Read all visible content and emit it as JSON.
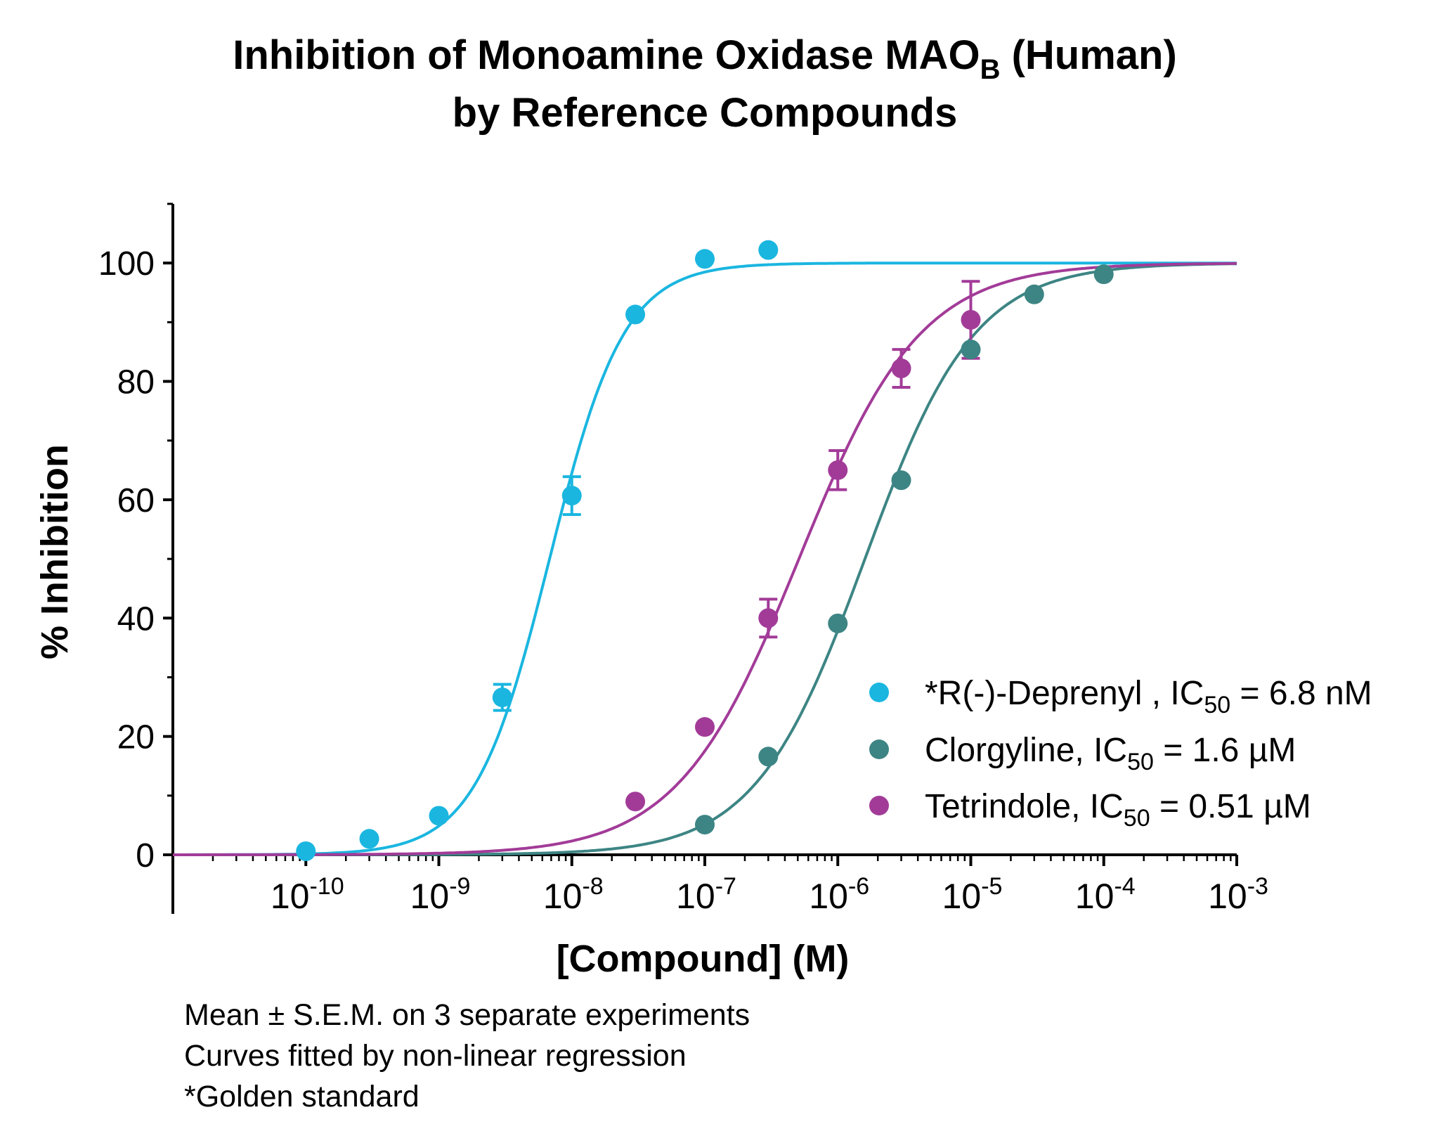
{
  "chart_data": {
    "type": "scatter",
    "title_line1_prefix": "Inhibition of  Monoamine Oxidase MAO",
    "title_line1_sub": "B",
    "title_line1_suffix": " (Human)",
    "title_line2": "by Reference Compounds",
    "xlabel": "[Compound] (M)",
    "ylabel": "% Inhibition",
    "x_scale": "log",
    "xlim": [
      1e-11,
      0.001
    ],
    "ylim": [
      0,
      110
    ],
    "x_ticks": [
      {
        "base": "10",
        "exp": "-10",
        "value": 1e-10
      },
      {
        "base": "10",
        "exp": "-9",
        "value": 1e-09
      },
      {
        "base": "10",
        "exp": "-8",
        "value": 1e-08
      },
      {
        "base": "10",
        "exp": "-7",
        "value": 1e-07
      },
      {
        "base": "10",
        "exp": "-6",
        "value": 1e-06
      },
      {
        "base": "10",
        "exp": "-5",
        "value": 1e-05
      },
      {
        "base": "10",
        "exp": "-4",
        "value": 0.0001
      },
      {
        "base": "10",
        "exp": "-3",
        "value": 0.001
      }
    ],
    "y_ticks": [
      {
        "label": "0",
        "value": 0
      },
      {
        "label": "20",
        "value": 20
      },
      {
        "label": "40",
        "value": 40
      },
      {
        "label": "60",
        "value": 60
      },
      {
        "label": "80",
        "value": 80
      },
      {
        "label": "100",
        "value": 100
      }
    ],
    "grid": false,
    "legend_position": "bottom-right",
    "series": [
      {
        "key": "deprenyl",
        "legend_prefix": "*R(-)-Deprenyl , IC",
        "legend_sub": "50",
        "legend_suffix": " = 6.8 nM",
        "color": "#1ab6e0",
        "ic50": 6.8e-09,
        "hill": 1.55,
        "points": [
          {
            "x": 1e-10,
            "y": 0.6,
            "err": 0
          },
          {
            "x": 3e-10,
            "y": 2.7,
            "err": 0
          },
          {
            "x": 1e-09,
            "y": 6.6,
            "err": 0
          },
          {
            "x": 3e-09,
            "y": 26.6,
            "err": 2.2
          },
          {
            "x": 1e-08,
            "y": 60.7,
            "err": 3.2
          },
          {
            "x": 3e-08,
            "y": 91.3,
            "err": 0
          },
          {
            "x": 1e-07,
            "y": 100.7,
            "err": 0
          },
          {
            "x": 3e-07,
            "y": 102.2,
            "err": 0
          }
        ]
      },
      {
        "key": "clorgyline",
        "legend_prefix": "Clorgyline, IC",
        "legend_sub": "50",
        "legend_suffix": " = 1.6 µM",
        "color": "#3d8584",
        "ic50": 1.6e-06,
        "hill": 1.05,
        "points": [
          {
            "x": 1e-07,
            "y": 5.1,
            "err": 0
          },
          {
            "x": 3e-07,
            "y": 16.6,
            "err": 0
          },
          {
            "x": 1e-06,
            "y": 39.1,
            "err": 0
          },
          {
            "x": 3e-06,
            "y": 63.3,
            "err": 0
          },
          {
            "x": 1e-05,
            "y": 85.4,
            "err": 0
          },
          {
            "x": 3e-05,
            "y": 94.7,
            "err": 0
          },
          {
            "x": 0.0001,
            "y": 98.1,
            "err": 0
          }
        ]
      },
      {
        "key": "tetrindole",
        "legend_prefix": "Tetrindole, IC",
        "legend_sub": "50",
        "legend_suffix": " = 0.51 µM",
        "color": "#a23b98",
        "ic50": 5.1e-07,
        "hill": 0.95,
        "points": [
          {
            "x": 3e-08,
            "y": 9.0,
            "err": 0
          },
          {
            "x": 1e-07,
            "y": 21.6,
            "err": 0
          },
          {
            "x": 3e-07,
            "y": 40.0,
            "err": 3.2
          },
          {
            "x": 1e-06,
            "y": 65.0,
            "err": 3.3
          },
          {
            "x": 3e-06,
            "y": 82.2,
            "err": 3.2
          },
          {
            "x": 1e-05,
            "y": 90.4,
            "err": 6.5
          }
        ]
      }
    ]
  },
  "footnotes": {
    "line1": "Mean ± S.E.M. on 3 separate experiments",
    "line2": "Curves fitted by non-linear regression",
    "line3": "*Golden standard"
  }
}
